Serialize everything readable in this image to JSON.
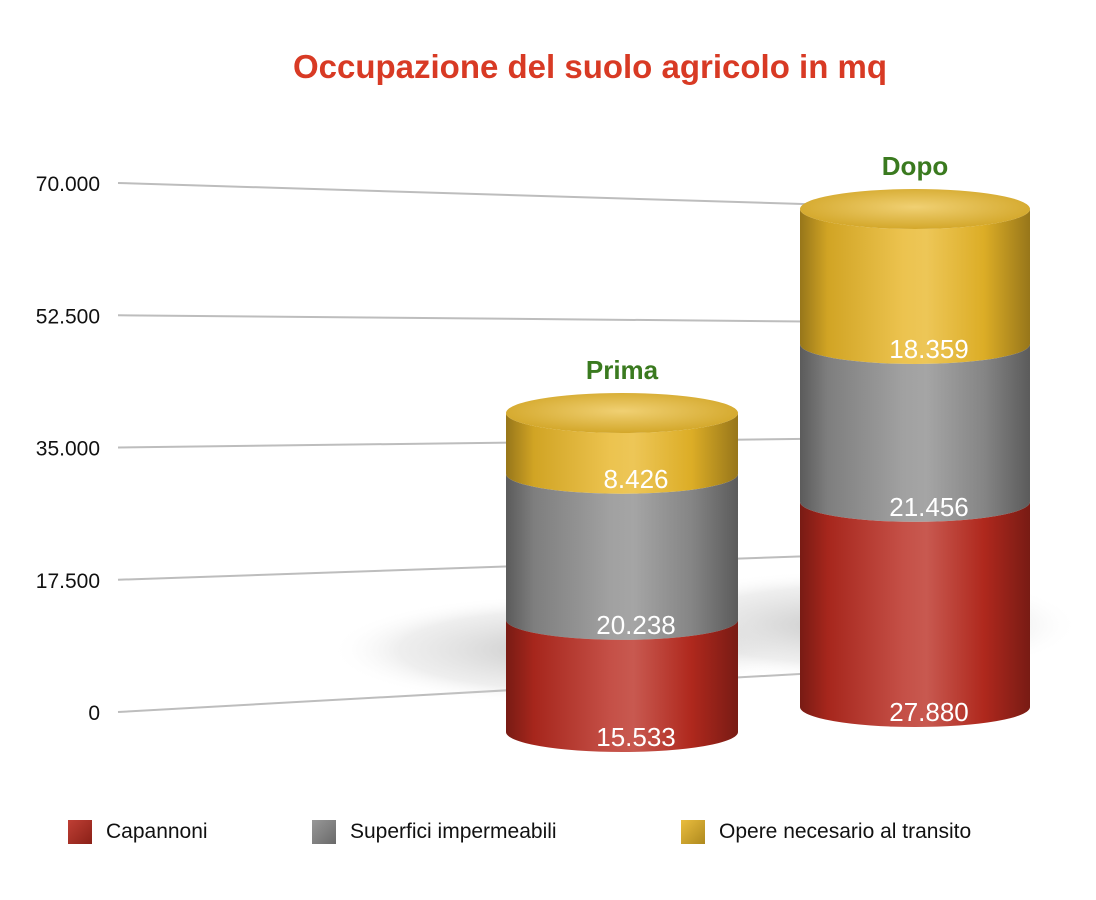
{
  "chart_data": {
    "type": "bar",
    "stacked": true,
    "style": "3d-cylinder",
    "title": "Occupazione del suolo agricolo in mq",
    "title_color": "#d83a24",
    "categories": [
      "Prima",
      "Dopo"
    ],
    "category_label_color": "#3a7a1f",
    "ylim": [
      0,
      70000
    ],
    "y_ticks": [
      "0",
      "17.500",
      "35.000",
      "52.500",
      "70.000"
    ],
    "y_tick_values": [
      0,
      17500,
      35000,
      52500,
      70000
    ],
    "grid": true,
    "legend_position": "bottom",
    "series": [
      {
        "name": "Capannoni",
        "values": [
          15533,
          27880
        ],
        "labels": [
          "15.533",
          "27.880"
        ],
        "color": "#b82a1f"
      },
      {
        "name": "Superfici impermeabili",
        "values": [
          20238,
          21456
        ],
        "labels": [
          "20.238",
          "21.456"
        ],
        "color": "#8c8c8c"
      },
      {
        "name": "Opere necesario al transito",
        "values": [
          8426,
          18359
        ],
        "labels": [
          "8.426",
          "18.359"
        ],
        "color": "#e8b628"
      }
    ]
  }
}
